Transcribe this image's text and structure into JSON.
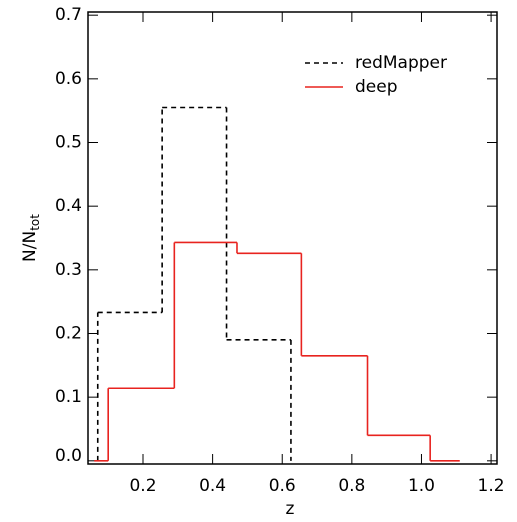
{
  "chart_data": {
    "type": "step-histogram",
    "xlabel": "z",
    "ylabel": {
      "main": "N/N",
      "sub": "tot"
    },
    "xlim": [
      0.042,
      1.217
    ],
    "ylim": [
      -0.005,
      0.705
    ],
    "xticks": [
      0.2,
      0.4,
      0.6,
      0.8,
      1.0,
      1.2
    ],
    "yticks": [
      0.0,
      0.1,
      0.2,
      0.3,
      0.4,
      0.5,
      0.6,
      0.7
    ],
    "legend": "upper right",
    "series": [
      {
        "name": "redMapper",
        "color": "#000000",
        "dash": true,
        "bins": [
          0.07,
          0.255,
          0.44,
          0.625
        ],
        "values": [
          0.233,
          0.555,
          0.19
        ]
      },
      {
        "name": "deep",
        "color": "#e8231f",
        "dash": false,
        "bins": [
          0.06,
          0.1,
          0.29,
          0.47,
          0.655,
          0.845,
          1.025,
          1.11
        ],
        "values": [
          0,
          0.114,
          0.343,
          0.326,
          0.165,
          0.04,
          0
        ]
      }
    ]
  }
}
